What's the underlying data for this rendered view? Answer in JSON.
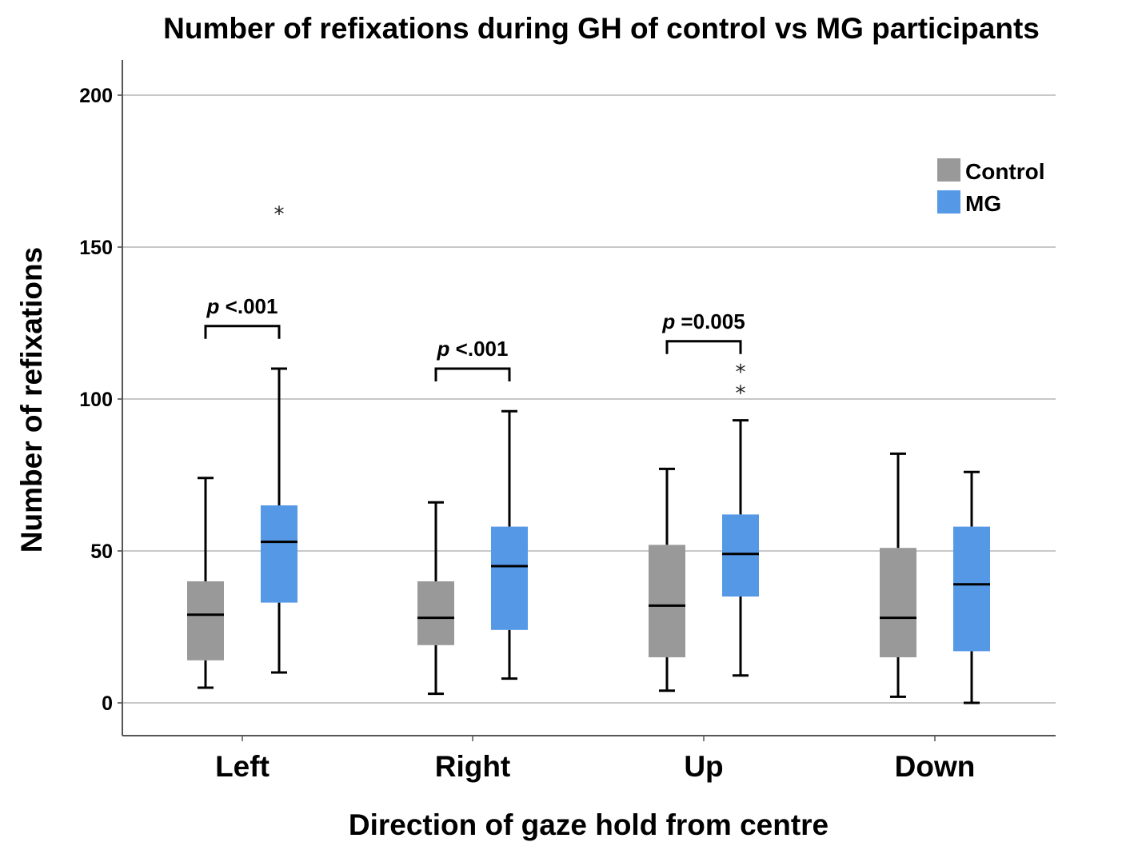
{
  "chart_data": {
    "type": "boxplot",
    "title": "Number of refixations during GH of control vs MG participants",
    "xlabel": "Direction of gaze hold from centre",
    "ylabel": "Number of refixations",
    "ylim": [
      -10,
      212
    ],
    "yticks": [
      0,
      50,
      100,
      150,
      200
    ],
    "grid": true,
    "legend": {
      "position": "top-right",
      "entries": [
        {
          "name": "Control",
          "color": "#999999"
        },
        {
          "name": "MG",
          "color": "#5599e6"
        }
      ]
    },
    "categories": [
      "Left",
      "Right",
      "Up",
      "Down"
    ],
    "series": [
      {
        "name": "Control",
        "color": "#999999",
        "boxes": [
          {
            "min": 5,
            "q1": 14,
            "median": 29,
            "q3": 40,
            "max": 74,
            "outliers": []
          },
          {
            "min": 3,
            "q1": 19,
            "median": 28,
            "q3": 40,
            "max": 66,
            "outliers": []
          },
          {
            "min": 4,
            "q1": 15,
            "median": 32,
            "q3": 52,
            "max": 77,
            "outliers": []
          },
          {
            "min": 2,
            "q1": 15,
            "median": 28,
            "q3": 51,
            "max": 82,
            "outliers": []
          }
        ]
      },
      {
        "name": "MG",
        "color": "#5599e6",
        "boxes": [
          {
            "min": 10,
            "q1": 33,
            "median": 53,
            "q3": 65,
            "max": 110,
            "outliers": [
              162
            ]
          },
          {
            "min": 8,
            "q1": 24,
            "median": 45,
            "q3": 58,
            "max": 96,
            "outliers": []
          },
          {
            "min": 9,
            "q1": 35,
            "median": 49,
            "q3": 62,
            "max": 93,
            "outliers": [
              110,
              103
            ]
          },
          {
            "min": 0,
            "q1": 17,
            "median": 39,
            "q3": 58,
            "max": 76,
            "outliers": []
          }
        ]
      }
    ],
    "annotations": [
      {
        "category": "Left",
        "p_symbol": "p",
        "p_text": "<.001",
        "bracket_y": 124
      },
      {
        "category": "Right",
        "p_symbol": "p",
        "p_text": "<.001",
        "bracket_y": 110
      },
      {
        "category": "Up",
        "p_symbol": "p",
        "p_text": "=0.005",
        "bracket_y": 119
      }
    ],
    "outlier_marker": "*"
  }
}
